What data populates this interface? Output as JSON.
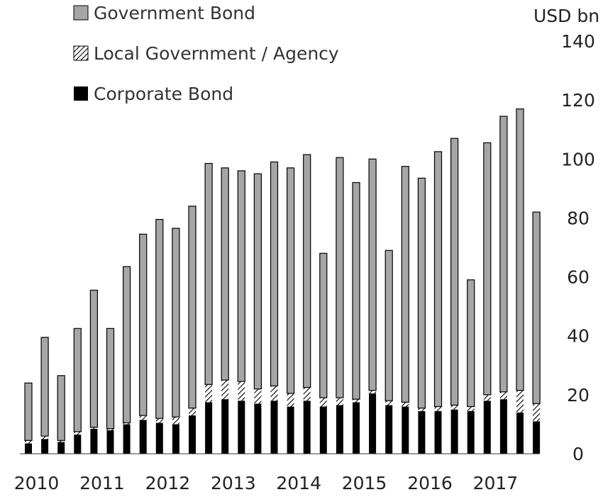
{
  "chart_data": {
    "type": "bar",
    "stacked": true,
    "unit_label": "USD bn",
    "ylim": [
      0,
      140
    ],
    "y_ticks": [
      "0",
      "20",
      "40",
      "60",
      "80",
      "100",
      "120",
      "140"
    ],
    "x_year_labels": [
      "2010",
      "2011",
      "2012",
      "2013",
      "2014",
      "2015",
      "2016",
      "2017"
    ],
    "grid": false,
    "legend_position": "top-left",
    "series": [
      {
        "name": "Corporate Bond",
        "color": "#000000",
        "values": [
          3.5,
          5,
          4,
          6.5,
          8.5,
          8,
          10,
          11.5,
          10.5,
          10,
          13,
          17.5,
          18.5,
          18,
          17,
          18,
          16,
          18,
          16,
          16.5,
          17.5,
          20.5,
          16.5,
          16,
          14.5,
          14.5,
          15,
          14.5,
          18,
          18.5,
          14,
          11
        ]
      },
      {
        "name": "Local Government / Agency",
        "color": "#ffffff",
        "pattern": "hatched",
        "values": [
          1,
          1,
          0.5,
          1,
          0.5,
          0.5,
          0.5,
          1.5,
          1.5,
          2.5,
          2.5,
          6,
          6.5,
          6.5,
          5,
          5,
          4.5,
          4.5,
          3,
          2.5,
          1,
          1,
          1.5,
          1.5,
          1,
          1.5,
          1.5,
          1.5,
          2,
          2.5,
          7.5,
          6
        ]
      },
      {
        "name": "Government Bond",
        "color": "#a6a6a6",
        "values": [
          19.5,
          33.5,
          22,
          35,
          46.5,
          34,
          53,
          61.5,
          67.5,
          64,
          68.5,
          75,
          72,
          71.5,
          73,
          76,
          76.5,
          79,
          49,
          81.5,
          73.5,
          78.5,
          51,
          80,
          78,
          86.5,
          90.5,
          43,
          85.5,
          93.5,
          95.5,
          65
        ]
      }
    ]
  }
}
